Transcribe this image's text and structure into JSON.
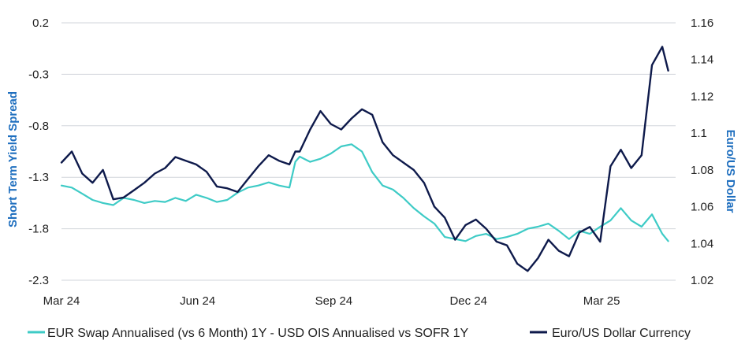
{
  "chart_data": {
    "type": "line",
    "x_tick_labels": [
      "Mar 24",
      "Jun 24",
      "Sep 24",
      "Dec 24",
      "Mar 25"
    ],
    "x_tick_dates": [
      "2024-03-01",
      "2024-06-01",
      "2024-09-01",
      "2024-12-01",
      "2025-03-01"
    ],
    "xlim": [
      "2024-03-01",
      "2025-04-20"
    ],
    "ylabel_left": "Short Term Yield Spread",
    "ylabel_right": "Euro/US Dollar",
    "yticks_left": [
      "0.2",
      "-0.3",
      "-0.8",
      "-1.3",
      "-1.8",
      "-2.3"
    ],
    "ylim_left": [
      -2.3,
      0.2
    ],
    "yticks_right": [
      "1.16",
      "1.14",
      "1.12",
      "1.1",
      "1.08",
      "1.06",
      "1.04",
      "1.02"
    ],
    "ylim_right": [
      1.02,
      1.16
    ],
    "grid": true,
    "legend_position": "bottom",
    "series": [
      {
        "name": "EUR Swap Annualised (vs 6 Month) 1Y - USD OIS Annualised vs SOFR 1Y",
        "axis": "left",
        "color": "#3ECBC6",
        "x": [
          "2024-03-01",
          "2024-03-08",
          "2024-03-15",
          "2024-03-22",
          "2024-03-29",
          "2024-04-05",
          "2024-04-12",
          "2024-04-19",
          "2024-04-26",
          "2024-05-03",
          "2024-05-10",
          "2024-05-17",
          "2024-05-24",
          "2024-05-31",
          "2024-06-07",
          "2024-06-14",
          "2024-06-21",
          "2024-06-28",
          "2024-07-05",
          "2024-07-12",
          "2024-07-19",
          "2024-07-26",
          "2024-08-02",
          "2024-08-06",
          "2024-08-09",
          "2024-08-16",
          "2024-08-23",
          "2024-08-30",
          "2024-09-06",
          "2024-09-13",
          "2024-09-20",
          "2024-09-27",
          "2024-10-04",
          "2024-10-11",
          "2024-10-18",
          "2024-10-25",
          "2024-11-01",
          "2024-11-08",
          "2024-11-15",
          "2024-11-22",
          "2024-11-29",
          "2024-12-06",
          "2024-12-13",
          "2024-12-20",
          "2024-12-27",
          "2025-01-03",
          "2025-01-10",
          "2025-01-17",
          "2025-01-24",
          "2025-01-31",
          "2025-02-07",
          "2025-02-14",
          "2025-02-21",
          "2025-02-28",
          "2025-03-07",
          "2025-03-14",
          "2025-03-21",
          "2025-03-28",
          "2025-04-04",
          "2025-04-11",
          "2025-04-15"
        ],
        "values": [
          -1.38,
          -1.4,
          -1.46,
          -1.52,
          -1.55,
          -1.57,
          -1.5,
          -1.52,
          -1.55,
          -1.53,
          -1.54,
          -1.5,
          -1.53,
          -1.47,
          -1.5,
          -1.54,
          -1.52,
          -1.45,
          -1.4,
          -1.38,
          -1.35,
          -1.38,
          -1.4,
          -1.15,
          -1.1,
          -1.15,
          -1.12,
          -1.07,
          -1.0,
          -0.98,
          -1.05,
          -1.25,
          -1.38,
          -1.42,
          -1.5,
          -1.6,
          -1.68,
          -1.75,
          -1.88,
          -1.9,
          -1.92,
          -1.87,
          -1.85,
          -1.9,
          -1.88,
          -1.85,
          -1.8,
          -1.78,
          -1.75,
          -1.82,
          -1.9,
          -1.82,
          -1.85,
          -1.78,
          -1.72,
          -1.6,
          -1.72,
          -1.78,
          -1.66,
          -1.85,
          -1.92
        ]
      },
      {
        "name": "Euro/US Dollar Currency",
        "axis": "right",
        "color": "#0E1A4B",
        "x": [
          "2024-03-01",
          "2024-03-08",
          "2024-03-15",
          "2024-03-22",
          "2024-03-29",
          "2024-04-05",
          "2024-04-12",
          "2024-04-19",
          "2024-04-26",
          "2024-05-03",
          "2024-05-10",
          "2024-05-17",
          "2024-05-24",
          "2024-05-31",
          "2024-06-07",
          "2024-06-14",
          "2024-06-21",
          "2024-06-28",
          "2024-07-05",
          "2024-07-12",
          "2024-07-19",
          "2024-07-26",
          "2024-08-02",
          "2024-08-06",
          "2024-08-09",
          "2024-08-16",
          "2024-08-23",
          "2024-08-30",
          "2024-09-06",
          "2024-09-13",
          "2024-09-20",
          "2024-09-27",
          "2024-10-04",
          "2024-10-11",
          "2024-10-18",
          "2024-10-25",
          "2024-11-01",
          "2024-11-08",
          "2024-11-15",
          "2024-11-22",
          "2024-11-29",
          "2024-12-06",
          "2024-12-13",
          "2024-12-20",
          "2024-12-27",
          "2025-01-03",
          "2025-01-10",
          "2025-01-17",
          "2025-01-24",
          "2025-01-31",
          "2025-02-07",
          "2025-02-14",
          "2025-02-21",
          "2025-02-28",
          "2025-03-07",
          "2025-03-14",
          "2025-03-21",
          "2025-03-28",
          "2025-04-04",
          "2025-04-11",
          "2025-04-15"
        ],
        "values": [
          1.084,
          1.09,
          1.078,
          1.073,
          1.08,
          1.064,
          1.065,
          1.069,
          1.073,
          1.078,
          1.081,
          1.087,
          1.085,
          1.083,
          1.079,
          1.071,
          1.07,
          1.068,
          1.075,
          1.082,
          1.088,
          1.085,
          1.083,
          1.09,
          1.09,
          1.102,
          1.112,
          1.105,
          1.102,
          1.108,
          1.113,
          1.11,
          1.095,
          1.088,
          1.084,
          1.08,
          1.073,
          1.06,
          1.054,
          1.042,
          1.05,
          1.053,
          1.048,
          1.041,
          1.039,
          1.029,
          1.025,
          1.032,
          1.042,
          1.036,
          1.033,
          1.046,
          1.049,
          1.041,
          1.082,
          1.091,
          1.081,
          1.088,
          1.137,
          1.147,
          1.134
        ]
      }
    ]
  }
}
